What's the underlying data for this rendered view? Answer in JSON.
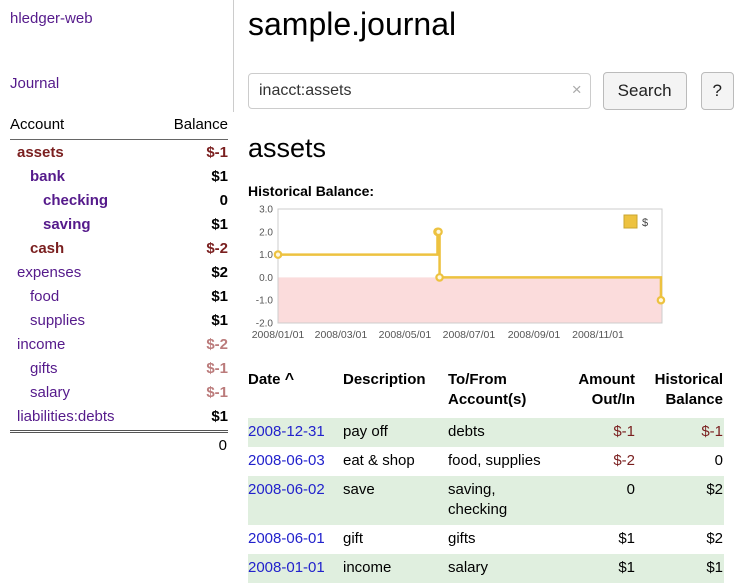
{
  "colors": {
    "link_purple": "#551a8b",
    "link_blue": "#2222cc",
    "neg_strong": "#7a1f1f",
    "neg_muted": "#bb7b7b",
    "row_green": "#e0efdf"
  },
  "sidebar": {
    "app_title": "hledger-web",
    "journal_link": "Journal",
    "accounts_header": {
      "account": "Account",
      "balance": "Balance"
    },
    "accounts": [
      {
        "name": "assets",
        "balance": "$-1",
        "depth": 1,
        "bold": true,
        "name_style": "negative",
        "balance_style": "negative"
      },
      {
        "name": "bank",
        "balance": "$1",
        "depth": 2,
        "bold": true,
        "name_style": "link",
        "balance_style": "normal"
      },
      {
        "name": "checking",
        "balance": "0",
        "depth": 3,
        "bold": true,
        "name_style": "link",
        "balance_style": "normal"
      },
      {
        "name": "saving",
        "balance": "$1",
        "depth": 3,
        "bold": true,
        "name_style": "link",
        "balance_style": "normal"
      },
      {
        "name": "cash",
        "balance": "$-2",
        "depth": 2,
        "bold": true,
        "name_style": "negative",
        "balance_style": "negative"
      },
      {
        "name": "expenses",
        "balance": "$2",
        "depth": 1,
        "bold": false,
        "name_style": "link",
        "balance_style": "normal"
      },
      {
        "name": "food",
        "balance": "$1",
        "depth": 2,
        "bold": false,
        "name_style": "link",
        "balance_style": "normal"
      },
      {
        "name": "supplies",
        "balance": "$1",
        "depth": 2,
        "bold": false,
        "name_style": "link",
        "balance_style": "normal"
      },
      {
        "name": "income",
        "balance": "$-2",
        "depth": 1,
        "bold": false,
        "name_style": "link",
        "balance_style": "negative_muted"
      },
      {
        "name": "gifts",
        "balance": "$-1",
        "depth": 2,
        "bold": false,
        "name_style": "link",
        "balance_style": "negative_muted"
      },
      {
        "name": "salary",
        "balance": "$-1",
        "depth": 2,
        "bold": false,
        "name_style": "link",
        "balance_style": "negative_muted"
      },
      {
        "name": "liabilities:debts",
        "balance": "$1",
        "depth": 1,
        "bold": false,
        "name_style": "link",
        "balance_style": "normal"
      }
    ],
    "total": "0"
  },
  "main": {
    "title": "sample.journal",
    "search": {
      "value": "inacct:assets",
      "clear_icon": "×",
      "search_button": "Search",
      "help_button": "?"
    },
    "account_heading": "assets",
    "chart_title": "Historical Balance:"
  },
  "chart_data": {
    "type": "line",
    "step": true,
    "title": "Historical Balance",
    "series": [
      {
        "name": "$",
        "color": "#edc240",
        "points": [
          [
            "2008-01-01",
            1
          ],
          [
            "2008-06-01",
            2
          ],
          [
            "2008-06-02",
            2
          ],
          [
            "2008-06-03",
            0
          ],
          [
            "2008-12-31",
            -1
          ]
        ]
      }
    ],
    "x_ticks": [
      "2008/01/01",
      "2008/03/01",
      "2008/05/01",
      "2008/07/01",
      "2008/09/01",
      "2008/11/01"
    ],
    "y_ticks": [
      3.0,
      2.0,
      1.0,
      0.0,
      -1.0,
      -2.0
    ],
    "xlim": [
      "2008-01-01",
      "2009-01-01"
    ],
    "ylim": [
      -2,
      3
    ],
    "grid": false,
    "legend_position": "top-right",
    "negative_region_color": "#fbdcdc"
  },
  "register": {
    "sort_indicator": "^",
    "headers": {
      "date": "Date",
      "description": "Description",
      "account": "To/From Account(s)",
      "amount": "Amount Out/In",
      "balance": "Historical Balance"
    },
    "rows": [
      {
        "date": "2008-12-31",
        "description": "pay off",
        "account": "debts",
        "amount": "$-1",
        "balance": "$-1",
        "amount_negative": true,
        "balance_negative": true
      },
      {
        "date": "2008-06-03",
        "description": "eat & shop",
        "account": "food, supplies",
        "amount": "$-2",
        "balance": "0",
        "amount_negative": true,
        "balance_negative": false
      },
      {
        "date": "2008-06-02",
        "description": "save",
        "account": "saving, checking",
        "amount": "0",
        "balance": "$2",
        "amount_negative": false,
        "balance_negative": false
      },
      {
        "date": "2008-06-01",
        "description": "gift",
        "account": "gifts",
        "amount": "$1",
        "balance": "$2",
        "amount_negative": false,
        "balance_negative": false
      },
      {
        "date": "2008-01-01",
        "description": "income",
        "account": "salary",
        "amount": "$1",
        "balance": "$1",
        "amount_negative": false,
        "balance_negative": false
      }
    ]
  }
}
